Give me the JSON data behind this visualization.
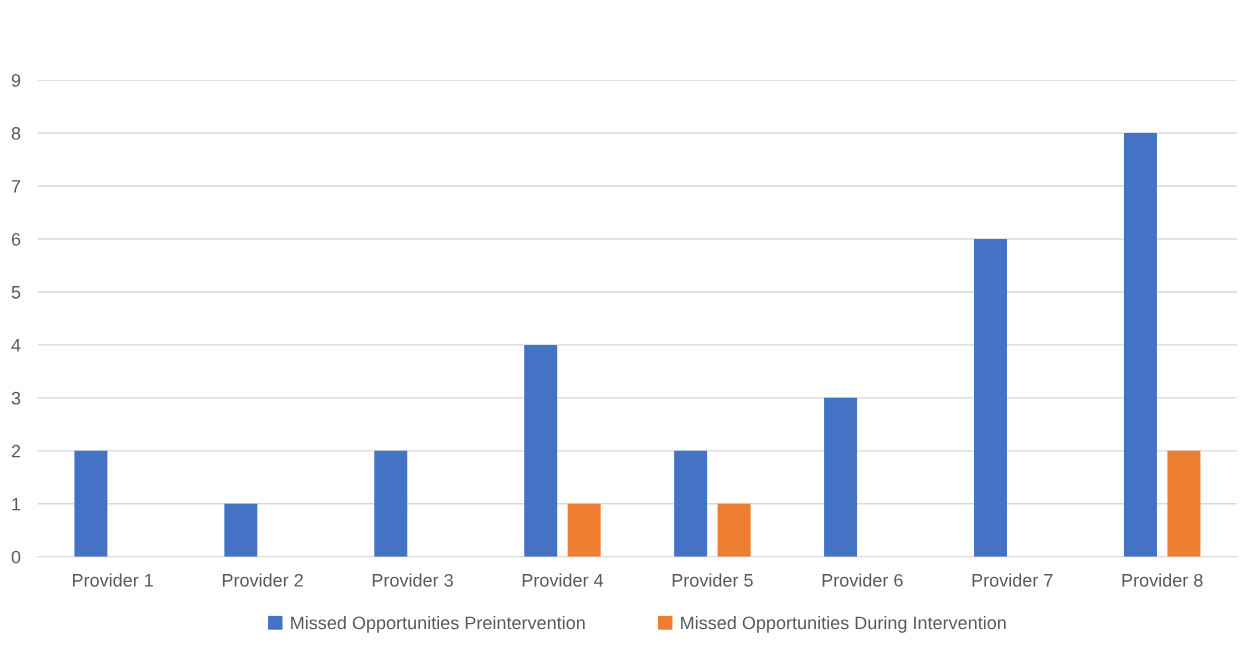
{
  "chart_data": {
    "type": "bar",
    "categories": [
      "Provider 1",
      "Provider 2",
      "Provider 3",
      "Provider 4",
      "Provider 5",
      "Provider 6",
      "Provider 7",
      "Provider 8"
    ],
    "series": [
      {
        "name": "Missed Opportunities Preintervention",
        "color": "#4472c4",
        "values": [
          2,
          1,
          2,
          4,
          2,
          3,
          6,
          8
        ]
      },
      {
        "name": "Missed Opportunities During Intervention",
        "color": "#ed7d31",
        "values": [
          0,
          0,
          0,
          1,
          1,
          0,
          0,
          2
        ]
      }
    ],
    "ylim": [
      0,
      9
    ],
    "yticks": [
      0,
      1,
      2,
      3,
      4,
      5,
      6,
      7,
      8,
      9
    ],
    "grid": "y",
    "legend": "bottom"
  }
}
